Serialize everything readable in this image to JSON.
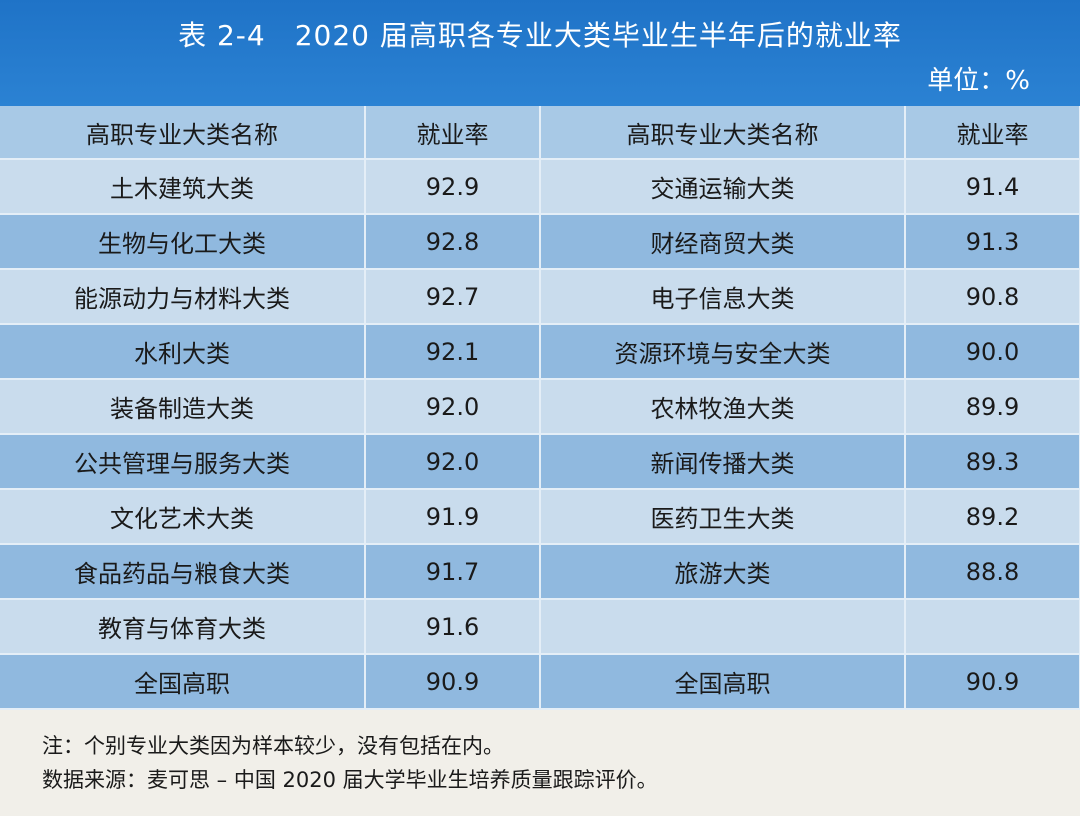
{
  "header": {
    "title": "表 2-4　2020 届高职各专业大类毕业生半年后的就业率",
    "unit": "单位：%"
  },
  "table": {
    "columns": [
      "高职专业大类名称",
      "就业率",
      "高职专业大类名称",
      "就业率"
    ],
    "rows": [
      [
        "土木建筑大类",
        "92.9",
        "交通运输大类",
        "91.4"
      ],
      [
        "生物与化工大类",
        "92.8",
        "财经商贸大类",
        "91.3"
      ],
      [
        "能源动力与材料大类",
        "92.7",
        "电子信息大类",
        "90.8"
      ],
      [
        "水利大类",
        "92.1",
        "资源环境与安全大类",
        "90.0"
      ],
      [
        "装备制造大类",
        "92.0",
        "农林牧渔大类",
        "89.9"
      ],
      [
        "公共管理与服务大类",
        "92.0",
        "新闻传播大类",
        "89.3"
      ],
      [
        "文化艺术大类",
        "91.9",
        "医药卫生大类",
        "89.2"
      ],
      [
        "食品药品与粮食大类",
        "91.7",
        "旅游大类",
        "88.8"
      ],
      [
        "教育与体育大类",
        "91.6",
        null,
        null
      ],
      [
        "全国高职",
        "90.9",
        "全国高职",
        "90.9"
      ]
    ]
  },
  "notes": [
    "注：个别专业大类因为样本较少，没有包括在内。",
    "数据来源：麦可思 – 中国 2020 届大学毕业生培养质量跟踪评价。"
  ]
}
